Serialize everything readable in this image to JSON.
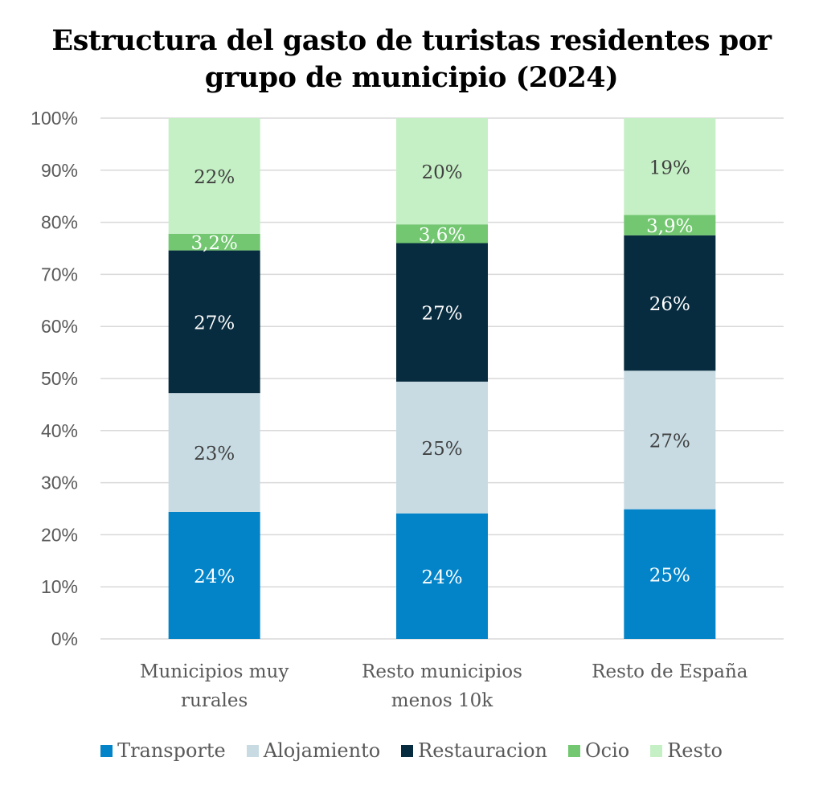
{
  "chart_data": {
    "type": "bar",
    "stacked": true,
    "title": "Estructura del gasto de turistas residentes por grupo de municipio (2024)",
    "title_lines": [
      "Estructura del gasto de turistas residentes por",
      "grupo de municipio (2024)"
    ],
    "xlabel": "",
    "ylabel": "",
    "ylim": [
      0,
      100
    ],
    "yticks": [
      0,
      10,
      20,
      30,
      40,
      50,
      60,
      70,
      80,
      90,
      100
    ],
    "ytick_labels": [
      "0%",
      "10%",
      "20%",
      "30%",
      "40%",
      "50%",
      "60%",
      "70%",
      "80%",
      "90%",
      "100%"
    ],
    "grid": true,
    "legend_position": "bottom",
    "categories": [
      "Municipios muy rurales",
      "Resto municipios menos 10k",
      "Resto de España"
    ],
    "category_lines": [
      [
        "Municipios muy",
        "rurales"
      ],
      [
        "Resto municipios",
        "menos 10k"
      ],
      [
        "Resto de España"
      ]
    ],
    "series": [
      {
        "name": "Transporte",
        "color": "#0384C8",
        "label_color": "#ffffff",
        "values": [
          24.4,
          24.1,
          24.9
        ],
        "labels": [
          "24%",
          "24%",
          "25%"
        ]
      },
      {
        "name": "Alojamiento",
        "color": "#C8DBE3",
        "label_color": "#404040",
        "values": [
          22.8,
          25.3,
          26.6
        ],
        "labels": [
          "23%",
          "25%",
          "27%"
        ]
      },
      {
        "name": "Restauracion",
        "color": "#082C3F",
        "label_color": "#ffffff",
        "values": [
          27.4,
          26.6,
          26.0
        ],
        "labels": [
          "27%",
          "27%",
          "26%"
        ]
      },
      {
        "name": "Ocio",
        "color": "#72C770",
        "label_color": "#ffffff",
        "values": [
          3.2,
          3.6,
          3.9
        ],
        "labels": [
          "3,2%",
          "3,6%",
          "3,9%"
        ]
      },
      {
        "name": "Resto",
        "color": "#C5F0C5",
        "label_color": "#404040",
        "values": [
          22.2,
          20.4,
          18.6
        ],
        "labels": [
          "22%",
          "20%",
          "19%"
        ]
      }
    ]
  }
}
